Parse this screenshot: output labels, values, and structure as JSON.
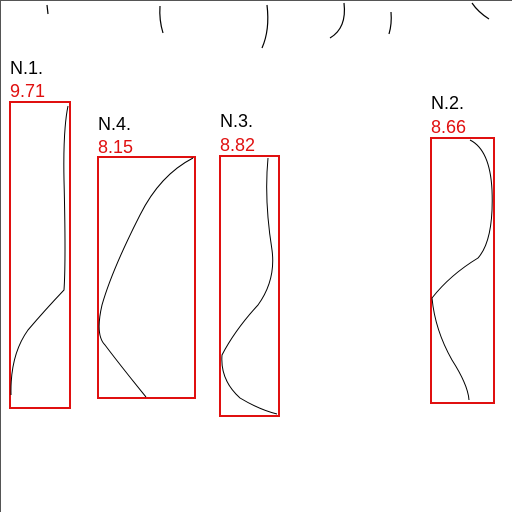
{
  "colors": {
    "box": "#e01010",
    "score": "#e01010",
    "stroke": "#000000"
  },
  "samples": [
    {
      "name": "N.1.",
      "score": "9.71"
    },
    {
      "name": "N.4.",
      "score": "8.15"
    },
    {
      "name": "N.3.",
      "score": "8.82"
    },
    {
      "name": "N.2.",
      "score": "8.66"
    }
  ]
}
